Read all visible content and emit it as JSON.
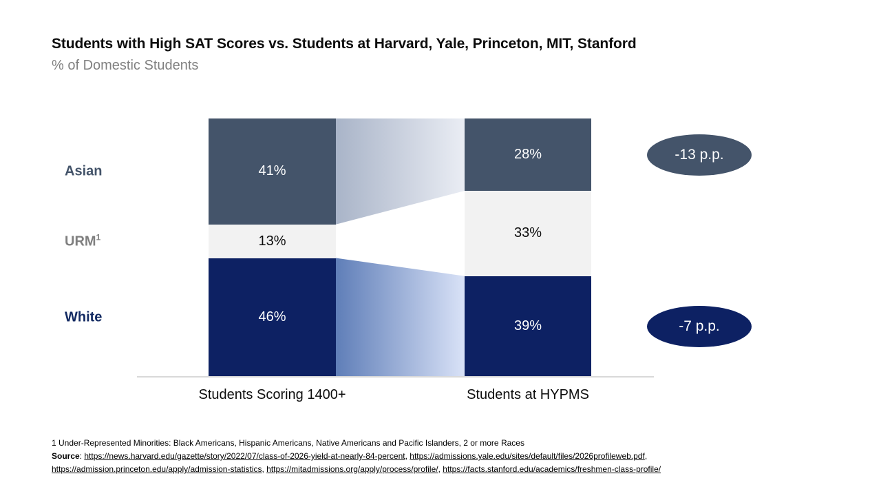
{
  "slide": {
    "title": "Students with High SAT Scores vs. Students at Harvard, Yale, Princeton, MIT, Stanford",
    "subtitle": "% of Domestic Students"
  },
  "chart_data": {
    "type": "bar",
    "variant": "100%-stacked-comparison-with-slope-bands",
    "categories": [
      "Students Scoring 1400+",
      "Students at HYPMS"
    ],
    "series": [
      {
        "name": "Asian",
        "sup": "",
        "values": [
          41,
          28
        ],
        "color": "#44546A",
        "value_label_color": "#FFFFFF",
        "row_label_color": "#44546A",
        "band": {
          "from": "#A9B4C8",
          "to": "#EAEDF4"
        }
      },
      {
        "name": "URM",
        "sup": "1",
        "values": [
          13,
          33
        ],
        "color": "#F2F2F2",
        "value_label_color": "#0D0D0D",
        "row_label_color": "#7F7F7F",
        "band": null
      },
      {
        "name": "White",
        "sup": "",
        "values": [
          46,
          39
        ],
        "color": "#0D2163",
        "value_label_color": "#FFFFFF",
        "row_label_color": "#132A62",
        "band": {
          "from": "#5F7EB8",
          "to": "#D9E2F7"
        }
      }
    ],
    "value_suffix": "%",
    "deltas": [
      {
        "series": "Asian",
        "text": "-13 p.p.",
        "color": "#44546A"
      },
      {
        "series": "White",
        "text": "-7 p.p.",
        "color": "#0D2163"
      }
    ],
    "axis_line_color": "#D9D9D9",
    "legend_position": "left-row-labels",
    "grid": false,
    "ylim": [
      0,
      100
    ]
  },
  "footnote": "1 Under-Represented Minorities: Black Americans, Hispanic Americans, Native Americans and Pacific Islanders, 2 or more Races",
  "source": {
    "label": "Source",
    "separator": ", ",
    "lines": [
      {
        "links": [
          "https://news.harvard.edu/gazette/story/2022/07/class-of-2026-yield-at-nearly-84-percent",
          "https://admissions.yale.edu/sites/default/files/2026profileweb.pdf"
        ],
        "trailing": ","
      },
      {
        "links": [
          "https://admission.princeton.edu/apply/admission-statistics",
          "https://mitadmissions.org/apply/process/profile/",
          "https://facts.stanford.edu/academics/freshmen-class-profile/"
        ],
        "trailing": ""
      }
    ]
  }
}
